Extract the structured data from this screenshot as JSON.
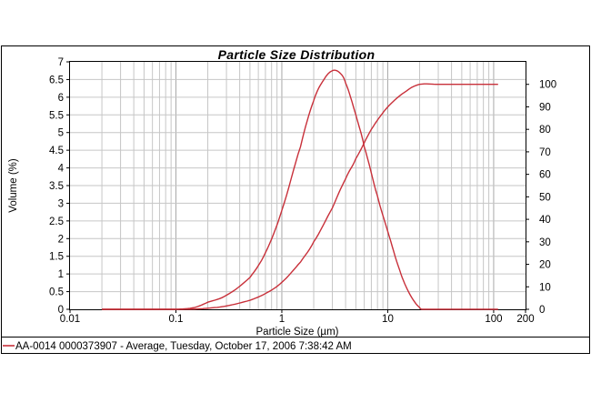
{
  "chart_data": {
    "type": "line",
    "title": "Particle Size Distribution",
    "xlabel": "Particle Size (µm)",
    "ylabel": "Volume (%)",
    "x_scale": "log",
    "xlim": [
      0.01,
      200
    ],
    "ylim": [
      0,
      7
    ],
    "y2lim": [
      0,
      110
    ],
    "x_tick_labels": [
      "0.01",
      "0.1",
      "1",
      "10",
      "100",
      "200"
    ],
    "x_tick_values": [
      0.01,
      0.1,
      1,
      10,
      100,
      200
    ],
    "y_tick_labels": [
      "0",
      "0.5",
      "1",
      "1.5",
      "2",
      "2.5",
      "3",
      "3.5",
      "4",
      "4.5",
      "5",
      "5.5",
      "6",
      "6.5",
      "7"
    ],
    "y2_tick_labels": [
      "0",
      "10",
      "20",
      "30",
      "40",
      "50",
      "60",
      "70",
      "80",
      "90",
      "100"
    ],
    "grid": true,
    "color": "#c8303a",
    "legend_text": "AA-0014 0000373907 - Average, Tuesday, October 17, 2006 7:38:42 AM",
    "series": [
      {
        "kind": "frequency",
        "axis": "left",
        "x": [
          0.02,
          0.05,
          0.1,
          0.15,
          0.2,
          0.3,
          0.5,
          0.7,
          1,
          1.5,
          2,
          2.5,
          3,
          3.5,
          4,
          5,
          6,
          8,
          10,
          13,
          16,
          20,
          22,
          25,
          50,
          110
        ],
        "y": [
          0,
          0,
          0,
          0.05,
          0.2,
          0.4,
          0.9,
          1.6,
          2.8,
          4.6,
          5.9,
          6.5,
          6.75,
          6.7,
          6.4,
          5.5,
          4.6,
          3.2,
          2.2,
          1.1,
          0.45,
          0.05,
          0,
          0,
          0,
          0
        ]
      },
      {
        "kind": "cumulative",
        "axis": "right",
        "x": [
          0.02,
          0.1,
          0.15,
          0.2,
          0.3,
          0.5,
          0.7,
          1,
          1.5,
          2,
          3,
          4,
          5,
          7,
          10,
          15,
          20,
          30,
          50,
          110
        ],
        "y": [
          0,
          0,
          0.1,
          0.5,
          1.5,
          4,
          7,
          12,
          21,
          30,
          45,
          58,
          67,
          80,
          90,
          97,
          100,
          100,
          100,
          100
        ]
      }
    ]
  }
}
